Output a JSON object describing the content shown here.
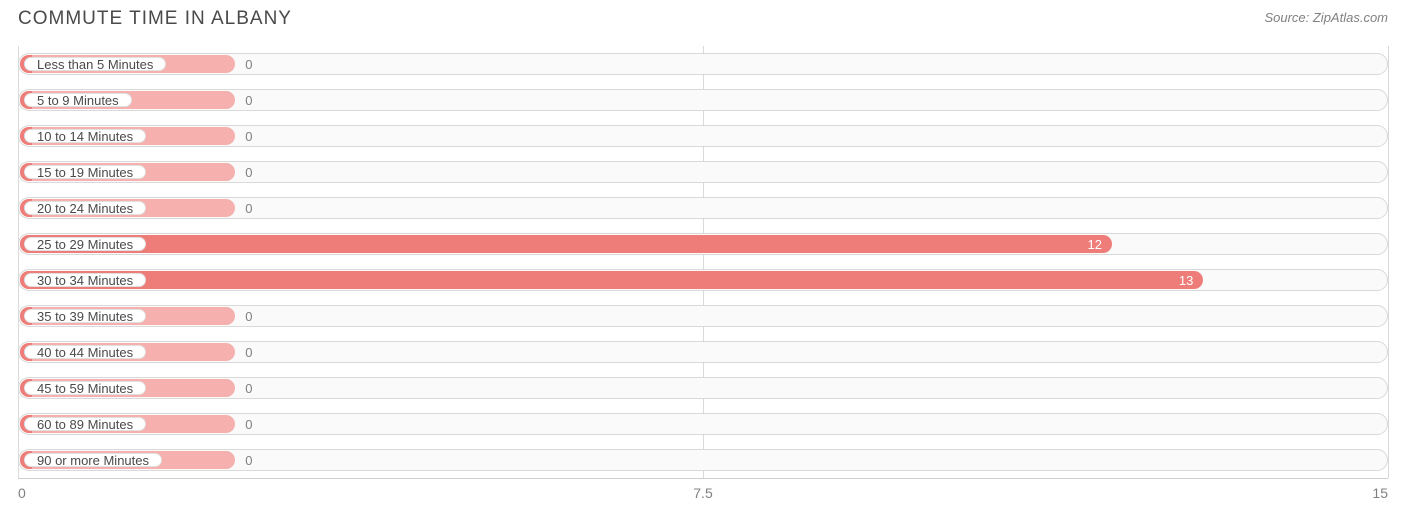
{
  "chart": {
    "type": "horizontal-bar",
    "title": "COMMUTE TIME IN ALBANY",
    "source": "Source: ZipAtlas.com",
    "title_color": "#4a4a4a",
    "title_fontsize": 19,
    "source_color": "#808080",
    "background_color": "#ffffff",
    "track_border_color": "#d9d9d9",
    "track_bg_color": "#fafafa",
    "grid_color": "#d9d9d9",
    "label_text_color": "#4a4a4a",
    "value_text_color_inside": "#ffffff",
    "value_text_color_outside": "#808080",
    "bar_color": "#ee7c78",
    "bar_color_light": "#f6b0ad",
    "cap_color": "#ee7c78",
    "xlim": [
      0,
      15
    ],
    "xticks": [
      0,
      7.5,
      15
    ],
    "xtick_labels": [
      "0",
      "7.5",
      "15"
    ],
    "min_bar_pct": 16.0,
    "categories": [
      {
        "label": "Less than 5 Minutes",
        "value": 0
      },
      {
        "label": "5 to 9 Minutes",
        "value": 0
      },
      {
        "label": "10 to 14 Minutes",
        "value": 0
      },
      {
        "label": "15 to 19 Minutes",
        "value": 0
      },
      {
        "label": "20 to 24 Minutes",
        "value": 0
      },
      {
        "label": "25 to 29 Minutes",
        "value": 12
      },
      {
        "label": "30 to 34 Minutes",
        "value": 13
      },
      {
        "label": "35 to 39 Minutes",
        "value": 0
      },
      {
        "label": "40 to 44 Minutes",
        "value": 0
      },
      {
        "label": "45 to 59 Minutes",
        "value": 0
      },
      {
        "label": "60 to 89 Minutes",
        "value": 0
      },
      {
        "label": "90 or more Minutes",
        "value": 0
      }
    ]
  }
}
